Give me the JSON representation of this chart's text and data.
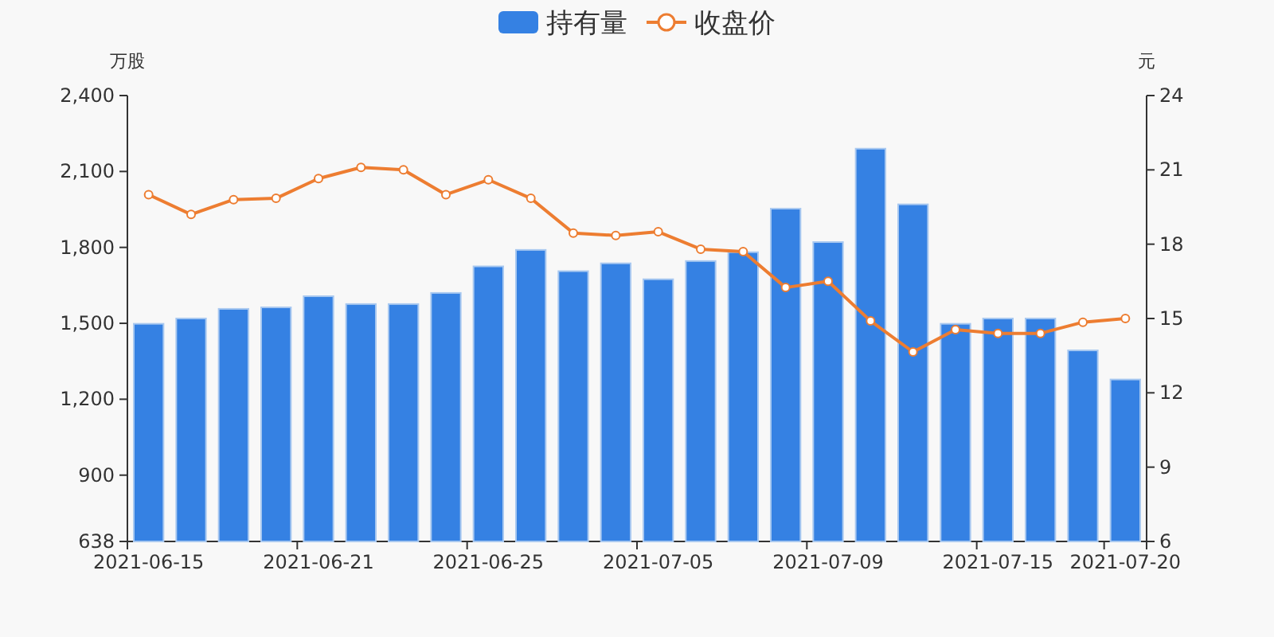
{
  "chart_data": {
    "type": "bar",
    "ylabel": "万股",
    "y2label": "元",
    "categories": [
      "2021-06-15",
      null,
      null,
      null,
      "2021-06-21",
      null,
      null,
      null,
      "2021-06-25",
      null,
      null,
      null,
      "2021-07-05",
      null,
      null,
      null,
      "2021-07-09",
      null,
      null,
      null,
      "2021-07-15",
      null,
      null,
      "2021-07-20"
    ],
    "series": [
      {
        "name": "持有量",
        "color": "#3581e3",
        "values": [
          1498,
          1519,
          1557,
          1563,
          1607,
          1576,
          1576,
          1620,
          1725,
          1790,
          1706,
          1737,
          1674,
          1746,
          1781,
          1953,
          1821,
          2190,
          1970,
          1498,
          1519,
          1519,
          1393,
          1278
        ]
      },
      {
        "name": "收盘价",
        "type": "line",
        "axis": "y2",
        "color": "#ed7d31",
        "marker": "circle",
        "values": [
          20.0,
          19.2,
          19.8,
          19.85,
          20.65,
          21.1,
          21.0,
          20.0,
          20.6,
          19.85,
          18.45,
          18.35,
          18.5,
          17.8,
          17.7,
          16.25,
          16.5,
          14.9,
          13.65,
          14.55,
          14.4,
          14.4,
          14.85,
          15.0
        ]
      }
    ],
    "ylim": [
      638,
      2400
    ],
    "yticks": [
      638,
      900,
      {
        "value": 1200,
        "label": "1,200"
      },
      {
        "value": 1500,
        "label": "1,500"
      },
      {
        "value": 1800,
        "label": "1,800"
      },
      {
        "value": 2100,
        "label": "2,100"
      },
      {
        "value": 2400,
        "label": "2,400"
      }
    ],
    "y2lim": [
      6,
      24
    ],
    "y2ticks": [
      6,
      9,
      12,
      15,
      18,
      21,
      24
    ],
    "grid": false,
    "legend": "top"
  }
}
